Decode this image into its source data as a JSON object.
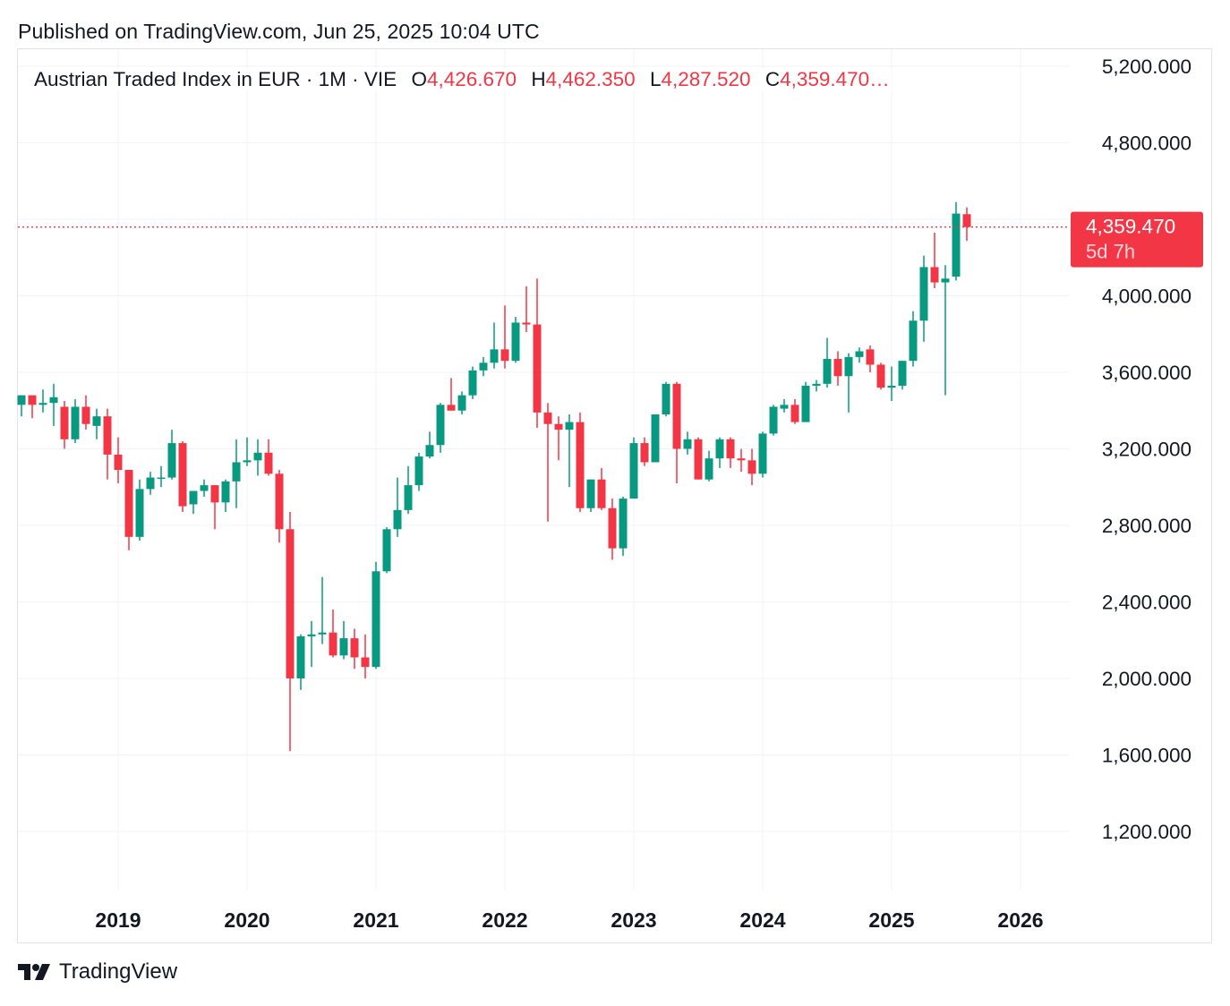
{
  "header": {
    "published": "Published on TradingView.com, Jun 25, 2025 10:04 UTC"
  },
  "legend": {
    "symbol": "Austrian Traded Index in EUR · 1M · VIE",
    "open_label": "O",
    "open_value": "4,426.670",
    "high_label": "H",
    "high_value": "4,462.350",
    "low_label": "L",
    "low_value": "4,287.520",
    "close_label": "C",
    "close_value": "4,359.470…"
  },
  "price_tag": {
    "price": "4,359.470",
    "countdown": "5d 7h"
  },
  "footer": {
    "brand": "TradingView",
    "logo_icon": "tradingview-logo-icon"
  },
  "colors": {
    "up": "#089981",
    "down": "#f23645",
    "grid": "#f0f3fa",
    "text": "#131722"
  },
  "chart_data": {
    "type": "candlestick",
    "title": "Austrian Traded Index in EUR",
    "interval": "1M",
    "exchange": "VIE",
    "y_axis_labels": [
      "5,200.000",
      "4,800.000",
      "4,000.000",
      "3,600.000",
      "3,200.000",
      "2,800.000",
      "2,400.000",
      "2,000.000",
      "1,600.000",
      "1,200.000"
    ],
    "y_axis_values": [
      5200,
      4800,
      4000,
      3600,
      3200,
      2800,
      2400,
      2000,
      1600,
      1200
    ],
    "x_axis_labels": [
      "2019",
      "2020",
      "2021",
      "2022",
      "2023",
      "2024",
      "2025",
      "2026"
    ],
    "ylim": [
      900,
      5200
    ],
    "grid": true,
    "last_price": 4359.47,
    "candles": [
      {
        "date": "2018-04",
        "o": 3430,
        "h": 3480,
        "l": 3370,
        "c": 3480
      },
      {
        "date": "2018-05",
        "o": 3480,
        "h": 3480,
        "l": 3360,
        "c": 3430
      },
      {
        "date": "2018-06",
        "o": 3430,
        "h": 3510,
        "l": 3390,
        "c": 3440
      },
      {
        "date": "2018-07",
        "o": 3440,
        "h": 3540,
        "l": 3320,
        "c": 3470
      },
      {
        "date": "2018-08",
        "o": 3420,
        "h": 3450,
        "l": 3200,
        "c": 3250
      },
      {
        "date": "2018-09",
        "o": 3250,
        "h": 3460,
        "l": 3230,
        "c": 3420
      },
      {
        "date": "2018-10",
        "o": 3420,
        "h": 3480,
        "l": 3300,
        "c": 3330
      },
      {
        "date": "2018-11",
        "o": 3320,
        "h": 3410,
        "l": 3250,
        "c": 3370
      },
      {
        "date": "2018-12",
        "o": 3370,
        "h": 3410,
        "l": 3040,
        "c": 3170
      },
      {
        "date": "2019-01",
        "o": 3170,
        "h": 3260,
        "l": 3020,
        "c": 3090
      },
      {
        "date": "2019-02",
        "o": 3090,
        "h": 3090,
        "l": 2670,
        "c": 2740
      },
      {
        "date": "2019-03",
        "o": 2740,
        "h": 3040,
        "l": 2720,
        "c": 2990
      },
      {
        "date": "2019-04",
        "o": 2990,
        "h": 3080,
        "l": 2960,
        "c": 3050
      },
      {
        "date": "2019-05",
        "o": 3050,
        "h": 3110,
        "l": 3000,
        "c": 3050
      },
      {
        "date": "2019-06",
        "o": 3050,
        "h": 3300,
        "l": 3040,
        "c": 3230
      },
      {
        "date": "2019-07",
        "o": 3230,
        "h": 3240,
        "l": 2870,
        "c": 2900
      },
      {
        "date": "2019-08",
        "o": 2910,
        "h": 2980,
        "l": 2860,
        "c": 2980
      },
      {
        "date": "2019-09",
        "o": 2980,
        "h": 3040,
        "l": 2950,
        "c": 3010
      },
      {
        "date": "2019-10",
        "o": 3010,
        "h": 3010,
        "l": 2780,
        "c": 2920
      },
      {
        "date": "2019-11",
        "o": 2920,
        "h": 3040,
        "l": 2870,
        "c": 3030
      },
      {
        "date": "2019-12",
        "o": 3030,
        "h": 3250,
        "l": 2890,
        "c": 3130
      },
      {
        "date": "2020-01",
        "o": 3130,
        "h": 3260,
        "l": 3110,
        "c": 3140
      },
      {
        "date": "2020-02",
        "o": 3140,
        "h": 3250,
        "l": 3060,
        "c": 3180
      },
      {
        "date": "2020-03",
        "o": 3180,
        "h": 3250,
        "l": 3060,
        "c": 3070
      },
      {
        "date": "2020-04",
        "o": 3070,
        "h": 3090,
        "l": 2710,
        "c": 2780
      },
      {
        "date": "2020-05",
        "o": 2780,
        "h": 2870,
        "l": 1620,
        "c": 2000
      },
      {
        "date": "2020-06",
        "o": 2000,
        "h": 2230,
        "l": 1940,
        "c": 2220
      },
      {
        "date": "2020-07",
        "o": 2220,
        "h": 2300,
        "l": 2060,
        "c": 2230
      },
      {
        "date": "2020-08",
        "o": 2230,
        "h": 2530,
        "l": 2180,
        "c": 2240
      },
      {
        "date": "2020-09",
        "o": 2240,
        "h": 2360,
        "l": 2110,
        "c": 2120
      },
      {
        "date": "2020-10",
        "o": 2120,
        "h": 2300,
        "l": 2100,
        "c": 2210
      },
      {
        "date": "2020-11",
        "o": 2210,
        "h": 2260,
        "l": 2050,
        "c": 2110
      },
      {
        "date": "2020-12",
        "o": 2110,
        "h": 2230,
        "l": 2000,
        "c": 2060
      },
      {
        "date": "2021-01",
        "o": 2060,
        "h": 2610,
        "l": 2050,
        "c": 2560
      },
      {
        "date": "2021-02",
        "o": 2560,
        "h": 2790,
        "l": 2550,
        "c": 2780
      },
      {
        "date": "2021-03",
        "o": 2780,
        "h": 3050,
        "l": 2740,
        "c": 2880
      },
      {
        "date": "2021-04",
        "o": 2880,
        "h": 3110,
        "l": 2860,
        "c": 3010
      },
      {
        "date": "2021-05",
        "o": 3010,
        "h": 3180,
        "l": 2980,
        "c": 3160
      },
      {
        "date": "2021-06",
        "o": 3160,
        "h": 3290,
        "l": 3150,
        "c": 3220
      },
      {
        "date": "2021-07",
        "o": 3220,
        "h": 3440,
        "l": 3180,
        "c": 3430
      },
      {
        "date": "2021-08",
        "o": 3430,
        "h": 3570,
        "l": 3400,
        "c": 3400
      },
      {
        "date": "2021-09",
        "o": 3400,
        "h": 3500,
        "l": 3380,
        "c": 3480
      },
      {
        "date": "2021-10",
        "o": 3480,
        "h": 3630,
        "l": 3460,
        "c": 3610
      },
      {
        "date": "2021-11",
        "o": 3610,
        "h": 3680,
        "l": 3580,
        "c": 3650
      },
      {
        "date": "2021-12",
        "o": 3650,
        "h": 3860,
        "l": 3620,
        "c": 3720
      },
      {
        "date": "2022-01",
        "o": 3720,
        "h": 3950,
        "l": 3620,
        "c": 3660
      },
      {
        "date": "2022-02",
        "o": 3660,
        "h": 3890,
        "l": 3650,
        "c": 3860
      },
      {
        "date": "2022-03",
        "o": 3860,
        "h": 4050,
        "l": 3810,
        "c": 3850
      },
      {
        "date": "2022-04",
        "o": 3850,
        "h": 4090,
        "l": 3310,
        "c": 3390
      },
      {
        "date": "2022-05",
        "o": 3390,
        "h": 3440,
        "l": 2820,
        "c": 3330
      },
      {
        "date": "2022-06",
        "o": 3330,
        "h": 3370,
        "l": 3140,
        "c": 3300
      },
      {
        "date": "2022-07",
        "o": 3300,
        "h": 3380,
        "l": 3000,
        "c": 3340
      },
      {
        "date": "2022-08",
        "o": 3340,
        "h": 3390,
        "l": 2870,
        "c": 2890
      },
      {
        "date": "2022-09",
        "o": 2890,
        "h": 3040,
        "l": 2870,
        "c": 3040
      },
      {
        "date": "2022-10",
        "o": 3040,
        "h": 3100,
        "l": 2880,
        "c": 2890
      },
      {
        "date": "2022-11",
        "o": 2890,
        "h": 2940,
        "l": 2620,
        "c": 2680
      },
      {
        "date": "2022-12",
        "o": 2680,
        "h": 2950,
        "l": 2640,
        "c": 2940
      },
      {
        "date": "2023-01",
        "o": 2940,
        "h": 3260,
        "l": 2940,
        "c": 3230
      },
      {
        "date": "2023-02",
        "o": 3230,
        "h": 3260,
        "l": 3110,
        "c": 3130
      },
      {
        "date": "2023-03",
        "o": 3130,
        "h": 3380,
        "l": 3130,
        "c": 3380
      },
      {
        "date": "2023-04",
        "o": 3380,
        "h": 3550,
        "l": 3370,
        "c": 3540
      },
      {
        "date": "2023-05",
        "o": 3540,
        "h": 3550,
        "l": 3020,
        "c": 3200
      },
      {
        "date": "2023-06",
        "o": 3200,
        "h": 3290,
        "l": 3170,
        "c": 3250
      },
      {
        "date": "2023-07",
        "o": 3250,
        "h": 3260,
        "l": 3040,
        "c": 3040
      },
      {
        "date": "2023-08",
        "o": 3040,
        "h": 3190,
        "l": 3030,
        "c": 3150
      },
      {
        "date": "2023-09",
        "o": 3150,
        "h": 3260,
        "l": 3100,
        "c": 3250
      },
      {
        "date": "2023-10",
        "o": 3250,
        "h": 3260,
        "l": 3100,
        "c": 3150
      },
      {
        "date": "2023-11",
        "o": 3150,
        "h": 3200,
        "l": 3080,
        "c": 3140
      },
      {
        "date": "2023-12",
        "o": 3140,
        "h": 3200,
        "l": 3010,
        "c": 3070
      },
      {
        "date": "2024-01",
        "o": 3070,
        "h": 3290,
        "l": 3050,
        "c": 3280
      },
      {
        "date": "2024-02",
        "o": 3280,
        "h": 3430,
        "l": 3270,
        "c": 3420
      },
      {
        "date": "2024-03",
        "o": 3410,
        "h": 3460,
        "l": 3390,
        "c": 3430
      },
      {
        "date": "2024-04",
        "o": 3430,
        "h": 3460,
        "l": 3330,
        "c": 3340
      },
      {
        "date": "2024-05",
        "o": 3340,
        "h": 3550,
        "l": 3340,
        "c": 3530
      },
      {
        "date": "2024-06",
        "o": 3530,
        "h": 3560,
        "l": 3500,
        "c": 3540
      },
      {
        "date": "2024-07",
        "o": 3540,
        "h": 3780,
        "l": 3520,
        "c": 3670
      },
      {
        "date": "2024-08",
        "o": 3670,
        "h": 3710,
        "l": 3530,
        "c": 3580
      },
      {
        "date": "2024-09",
        "o": 3580,
        "h": 3700,
        "l": 3390,
        "c": 3680
      },
      {
        "date": "2024-10",
        "o": 3680,
        "h": 3730,
        "l": 3650,
        "c": 3710
      },
      {
        "date": "2024-11",
        "o": 3720,
        "h": 3740,
        "l": 3600,
        "c": 3640
      },
      {
        "date": "2024-12",
        "o": 3640,
        "h": 3650,
        "l": 3510,
        "c": 3520
      },
      {
        "date": "2025-01",
        "o": 3520,
        "h": 3630,
        "l": 3450,
        "c": 3530
      },
      {
        "date": "2025-02",
        "o": 3530,
        "h": 3660,
        "l": 3510,
        "c": 3660
      },
      {
        "date": "2025-03",
        "o": 3660,
        "h": 3920,
        "l": 3630,
        "c": 3870
      },
      {
        "date": "2025-04",
        "o": 3870,
        "h": 4210,
        "l": 3760,
        "c": 4150
      },
      {
        "date": "2025-05",
        "o": 4150,
        "h": 4330,
        "l": 4040,
        "c": 4070
      },
      {
        "date": "2025-06",
        "o": 4070,
        "h": 4160,
        "l": 3480,
        "c": 4090
      },
      {
        "date": "2025-07",
        "o": 4100,
        "h": 4490,
        "l": 4080,
        "c": 4430
      },
      {
        "date": "2025-08",
        "o": 4426.67,
        "h": 4462.35,
        "l": 4287.52,
        "c": 4359.47
      }
    ]
  }
}
